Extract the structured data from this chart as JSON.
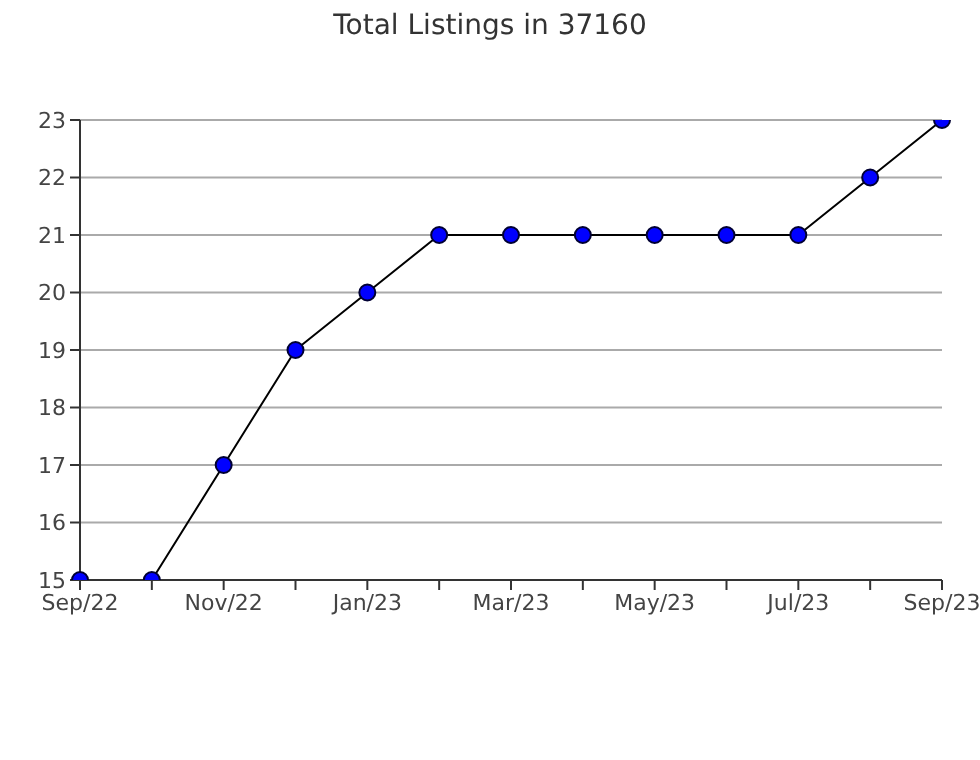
{
  "chart_data": {
    "type": "line",
    "title": "Total Listings in 37160",
    "categories": [
      "Sep/22",
      null,
      "Nov/22",
      null,
      "Jan/23",
      null,
      "Mar/23",
      null,
      "May/23",
      null,
      "Jul/23",
      null,
      "Sep/23"
    ],
    "series": [
      {
        "color": "#0000ff",
        "values": [
          15,
          15,
          17,
          19,
          20,
          21,
          21,
          21,
          21,
          21,
          21,
          22,
          23
        ]
      }
    ],
    "ylim": [
      15,
      23
    ],
    "yticks": [
      15,
      16,
      17,
      18,
      19,
      20,
      21,
      22,
      23
    ],
    "grid": "y",
    "marker": "circle",
    "line_style": "solid",
    "legend": false
  }
}
